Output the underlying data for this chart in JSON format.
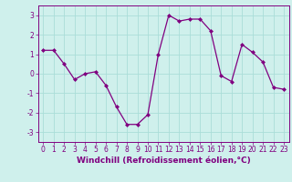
{
  "x": [
    0,
    1,
    2,
    3,
    4,
    5,
    6,
    7,
    8,
    9,
    10,
    11,
    12,
    13,
    14,
    15,
    16,
    17,
    18,
    19,
    20,
    21,
    22,
    23
  ],
  "y": [
    1.2,
    1.2,
    0.5,
    -0.3,
    0.0,
    0.1,
    -0.6,
    -1.7,
    -2.6,
    -2.6,
    -2.1,
    1.0,
    3.0,
    2.7,
    2.8,
    2.8,
    2.2,
    -0.1,
    -0.4,
    1.5,
    1.1,
    0.6,
    -0.7,
    -0.8
  ],
  "line_color": "#800080",
  "marker": "D",
  "marker_size": 2,
  "bg_color": "#cff0ec",
  "grid_color": "#aaddd8",
  "xlabel": "Windchill (Refroidissement éolien,°C)",
  "ylabel": "",
  "xlim": [
    -0.5,
    23.5
  ],
  "ylim": [
    -3.5,
    3.5
  ],
  "yticks": [
    -3,
    -2,
    -1,
    0,
    1,
    2,
    3
  ],
  "xticks": [
    0,
    1,
    2,
    3,
    4,
    5,
    6,
    7,
    8,
    9,
    10,
    11,
    12,
    13,
    14,
    15,
    16,
    17,
    18,
    19,
    20,
    21,
    22,
    23
  ],
  "tick_fontsize": 5.5,
  "xlabel_fontsize": 6.5
}
